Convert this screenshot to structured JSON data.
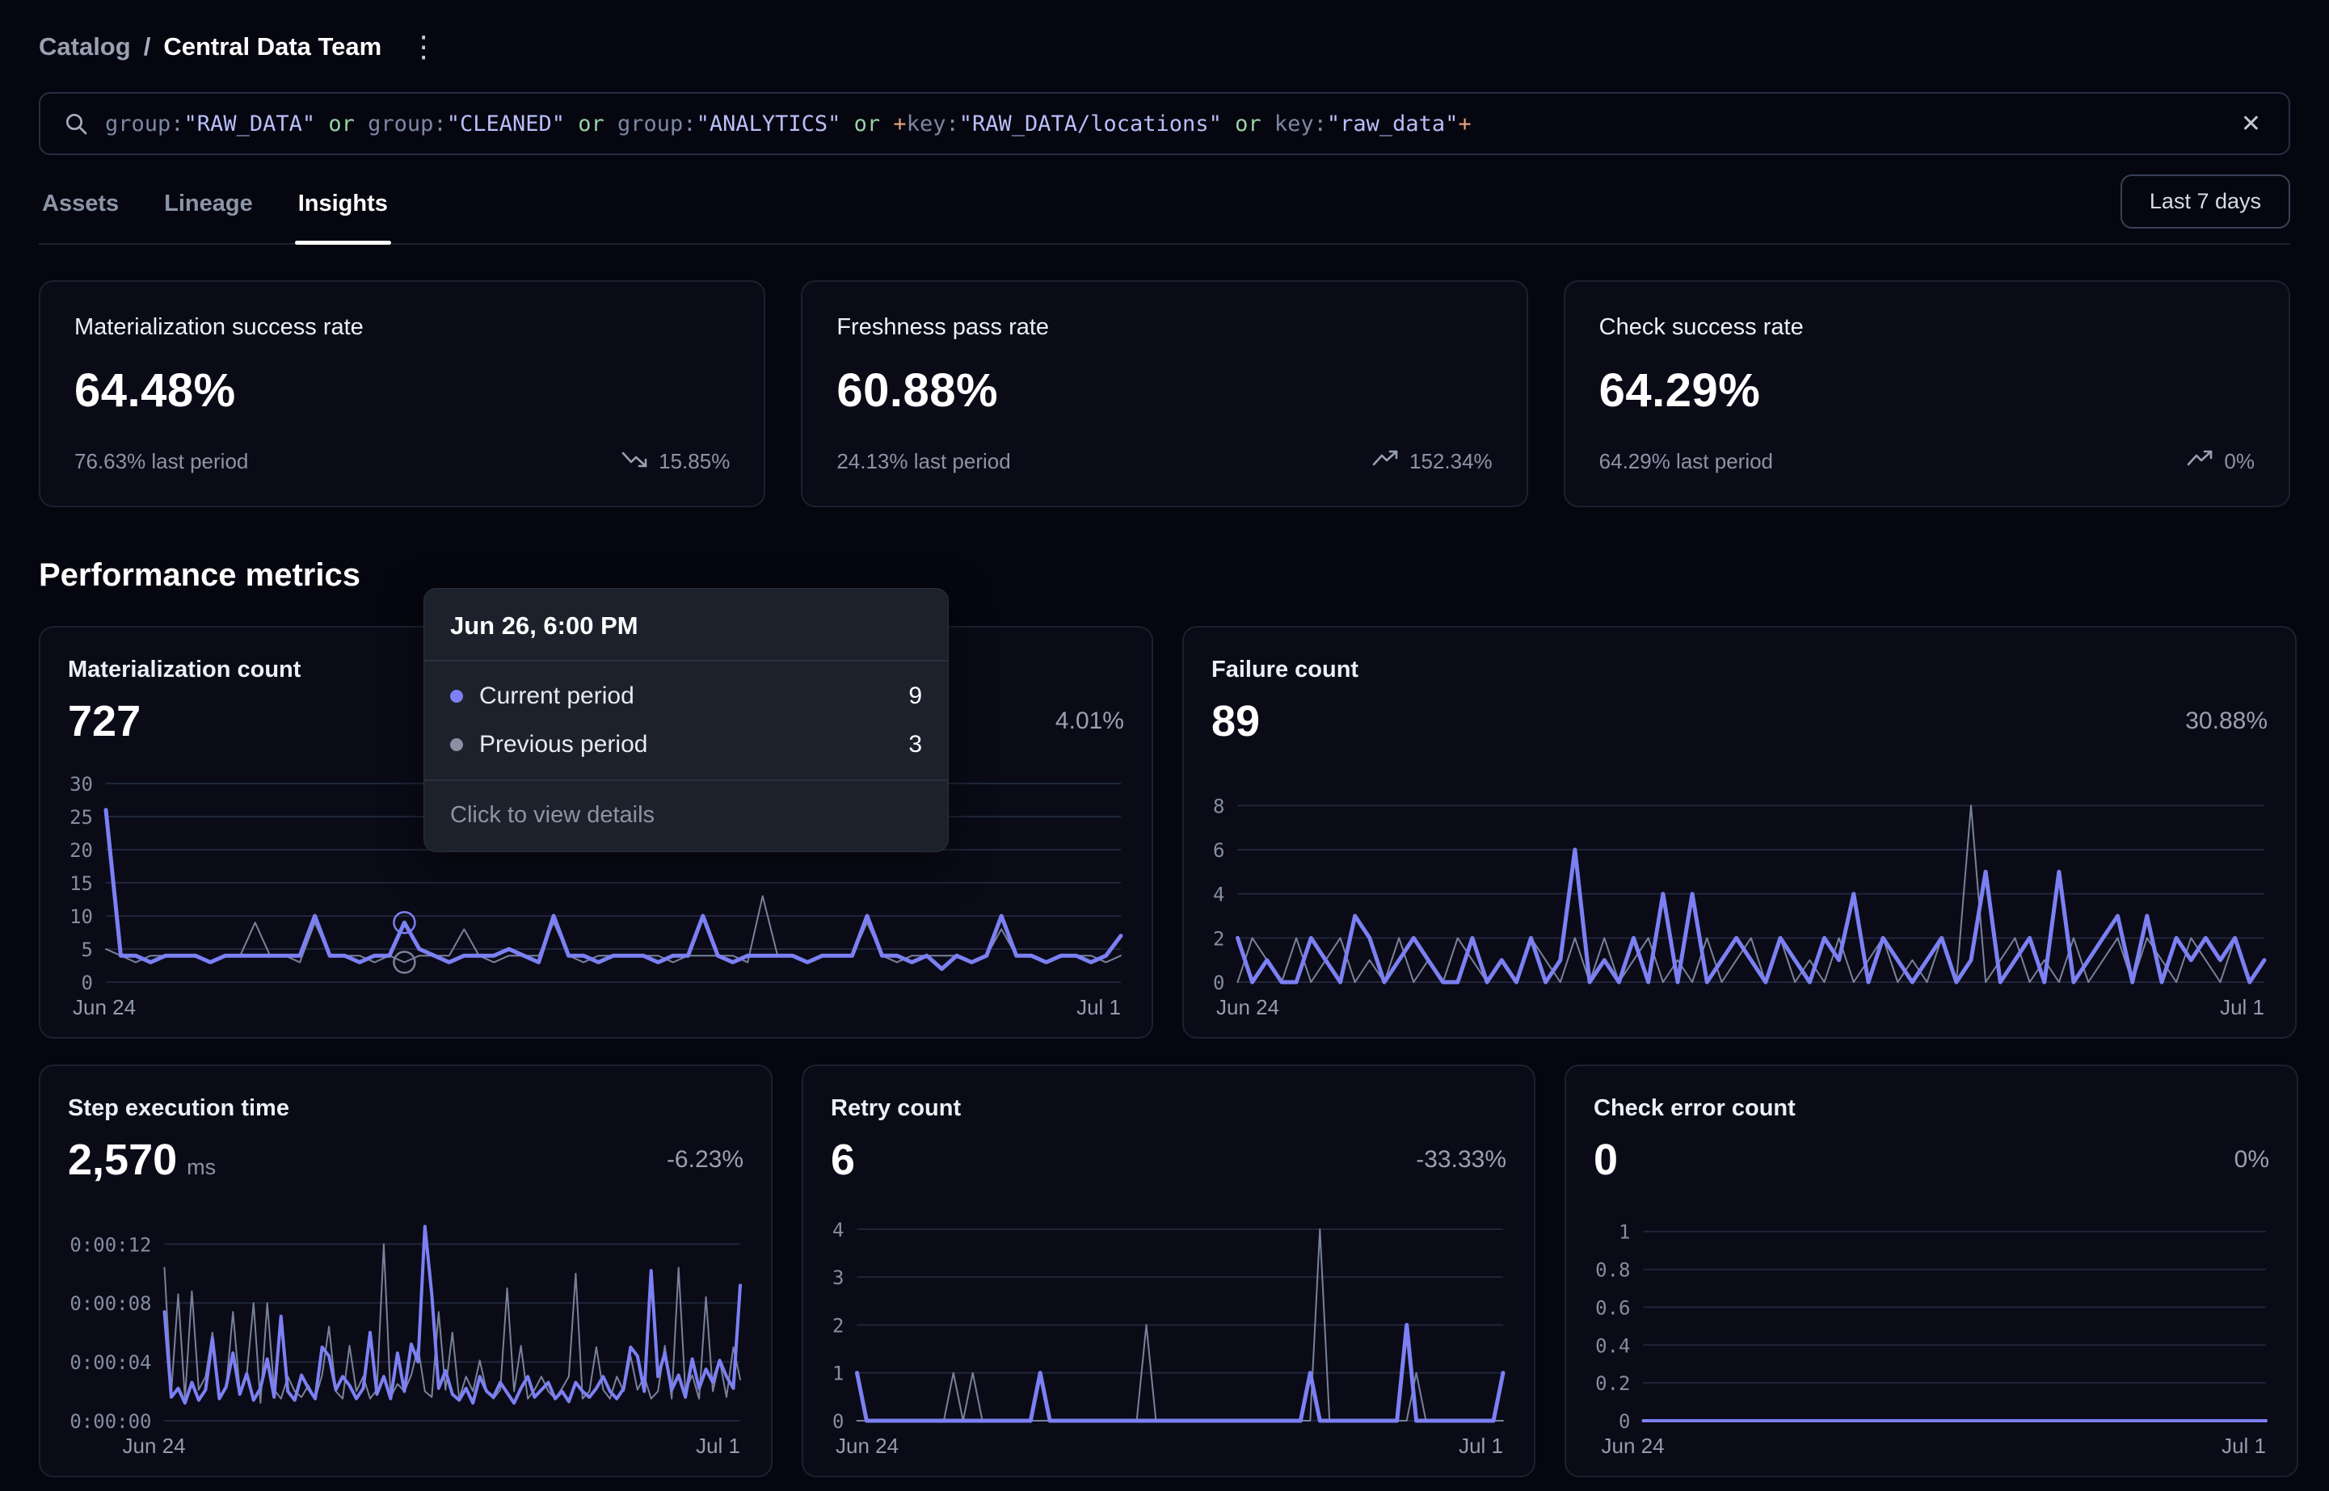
{
  "header": {
    "breadcrumb": {
      "section": "Catalog",
      "separator": "/",
      "current": "Central Data Team"
    },
    "menu_icon": "kebab-menu"
  },
  "search": {
    "tokens": [
      {
        "text": "group:",
        "type": "key"
      },
      {
        "text": "\"RAW_DATA\"",
        "type": "value"
      },
      {
        "text": " or ",
        "type": "op"
      },
      {
        "text": "group:",
        "type": "key"
      },
      {
        "text": "\"CLEANED\"",
        "type": "value"
      },
      {
        "text": " or ",
        "type": "op"
      },
      {
        "text": "group:",
        "type": "key"
      },
      {
        "text": "\"ANALYTICS\"",
        "type": "value"
      },
      {
        "text": " or ",
        "type": "op"
      },
      {
        "text": "+",
        "type": "plus"
      },
      {
        "text": "key:",
        "type": "key"
      },
      {
        "text": "\"RAW_DATA/locations\"",
        "type": "value"
      },
      {
        "text": " or ",
        "type": "op"
      },
      {
        "text": "key:",
        "type": "key"
      },
      {
        "text": "\"raw_data\"",
        "type": "value"
      },
      {
        "text": "+",
        "type": "plus"
      }
    ],
    "clear_icon": "close"
  },
  "tabs": {
    "items": [
      {
        "label": "Assets",
        "active": false
      },
      {
        "label": "Lineage",
        "active": false
      },
      {
        "label": "Insights",
        "active": true
      }
    ],
    "range_button": "Last 7 days"
  },
  "summary_cards": [
    {
      "title": "Materialization success rate",
      "value": "64.48%",
      "last_period": "76.63% last period",
      "change": "15.85%",
      "trend": "down"
    },
    {
      "title": "Freshness pass rate",
      "value": "60.88%",
      "last_period": "24.13% last period",
      "change": "152.34%",
      "trend": "up"
    },
    {
      "title": "Check success rate",
      "value": "64.29%",
      "last_period": "64.29% last period",
      "change": "0%",
      "trend": "up"
    }
  ],
  "performance": {
    "heading": "Performance metrics",
    "charts": [
      {
        "title": "Materialization count",
        "value": "727",
        "unit": "",
        "change": "4.01%",
        "chart_data": {
          "type": "line",
          "x_range": [
            "Jun 24",
            "Jul 1"
          ],
          "y_ticks": [
            0,
            5,
            10,
            15,
            20,
            25,
            30
          ],
          "y_tick_labels": [
            "0",
            "5",
            "10",
            "15",
            "20",
            "25",
            "30"
          ],
          "scale_max": 30,
          "series": [
            {
              "name": "Current period",
              "color": "#7c80f3",
              "width": 5,
              "values": [
                26,
                4,
                4,
                3,
                4,
                4,
                4,
                3,
                4,
                4,
                4,
                4,
                4,
                4,
                10,
                4,
                4,
                3,
                4,
                4,
                9,
                5,
                4,
                3,
                4,
                4,
                4,
                5,
                4,
                3,
                10,
                4,
                4,
                3,
                4,
                4,
                4,
                3,
                4,
                4,
                10,
                4,
                3,
                4,
                4,
                4,
                4,
                3,
                4,
                4,
                4,
                10,
                4,
                4,
                3,
                4,
                2,
                4,
                3,
                4,
                10,
                4,
                4,
                3,
                4,
                4,
                3,
                4,
                7
              ]
            },
            {
              "name": "Previous period",
              "color": "#79819a",
              "width": 2,
              "values": [
                5,
                4,
                3,
                4,
                4,
                4,
                4,
                3,
                4,
                4,
                9,
                4,
                4,
                3,
                9,
                4,
                4,
                4,
                3,
                4,
                3,
                4,
                4,
                4,
                8,
                4,
                3,
                4,
                4,
                4,
                9,
                4,
                3,
                4,
                4,
                4,
                4,
                4,
                3,
                4,
                4,
                4,
                4,
                3,
                13,
                4,
                4,
                3,
                4,
                4,
                4,
                9,
                4,
                3,
                4,
                4,
                4,
                4,
                3,
                4,
                8,
                4,
                4,
                3,
                4,
                4,
                4,
                3,
                4
              ]
            }
          ],
          "hover": {
            "index": 20,
            "rings": [
              0,
              1
            ]
          }
        }
      },
      {
        "title": "Failure count",
        "value": "89",
        "unit": "",
        "change": "30.88%",
        "chart_data": {
          "type": "line",
          "x_range": [
            "Jun 24",
            "Jul 1"
          ],
          "y_ticks": [
            0,
            2,
            4,
            6,
            8
          ],
          "y_tick_labels": [
            "0",
            "2",
            "4",
            "6",
            "8"
          ],
          "scale_max": 9,
          "series": [
            {
              "name": "Current period",
              "color": "#7c80f3",
              "width": 5,
              "values": [
                2,
                0,
                1,
                0,
                0,
                2,
                1,
                0,
                3,
                2,
                0,
                1,
                2,
                1,
                0,
                0,
                2,
                0,
                1,
                0,
                2,
                0,
                1,
                6,
                0,
                1,
                0,
                2,
                0,
                4,
                0,
                4,
                0,
                1,
                2,
                1,
                0,
                2,
                1,
                0,
                2,
                1,
                4,
                0,
                2,
                1,
                0,
                1,
                2,
                0,
                1,
                5,
                0,
                1,
                2,
                0,
                5,
                0,
                1,
                2,
                3,
                0,
                3,
                0,
                2,
                1,
                2,
                1,
                2,
                0,
                1
              ]
            },
            {
              "name": "Previous period",
              "color": "#79819a",
              "width": 2,
              "values": [
                0,
                2,
                1,
                0,
                2,
                0,
                1,
                2,
                0,
                1,
                0,
                2,
                0,
                1,
                0,
                2,
                1,
                0,
                1,
                0,
                2,
                1,
                0,
                2,
                0,
                2,
                0,
                1,
                2,
                0,
                1,
                0,
                2,
                0,
                1,
                2,
                0,
                2,
                0,
                1,
                0,
                2,
                0,
                1,
                2,
                0,
                1,
                0,
                2,
                0,
                8,
                0,
                1,
                2,
                0,
                1,
                0,
                2,
                0,
                1,
                2,
                0,
                2,
                1,
                0,
                2,
                1,
                0,
                2,
                0,
                1
              ]
            }
          ]
        }
      },
      {
        "title": "Step execution time",
        "value": "2,570",
        "unit": "ms",
        "change": "-6.23%",
        "chart_data": {
          "type": "line",
          "x_range": [
            "Jun 24",
            "Jul 1"
          ],
          "y_ticks": [
            0,
            4,
            8,
            12
          ],
          "y_tick_labels": [
            "0:00:00",
            "0:00:04",
            "0:00:08",
            "0:00:12"
          ],
          "scale_max": 13.5,
          "series": [
            {
              "name": "Current period",
              "color": "#7c80f3",
              "width": 4,
              "values": [
                7.4,
                1.6,
                2.2,
                1.2,
                2.6,
                1.4,
                2.1,
                5.6,
                1.5,
                2.3,
                4.6,
                1.8,
                3.2,
                1.4,
                2.2,
                4.2,
                1.6,
                7.1,
                2.0,
                1.4,
                3.1,
                2.2,
                1.5,
                5.0,
                4.4,
                2.1,
                3.0,
                2.4,
                1.5,
                2.2,
                6.0,
                1.8,
                3.0,
                1.5,
                4.6,
                2.0,
                5.2,
                4.0,
                13.2,
                8.6,
                2.2,
                3.4,
                1.8,
                1.4,
                2.2,
                1.2,
                3.0,
                2.0,
                1.6,
                2.6,
                1.9,
                1.2,
                2.2,
                3.0,
                1.6,
                2.1,
                2.6,
                1.5,
                2.0,
                1.3,
                2.6,
                2.0,
                1.6,
                2.2,
                3.0,
                2.0,
                1.5,
                2.2,
                5.0,
                4.4,
                2.0,
                10.2,
                3.0,
                4.6,
                2.1,
                3.1,
                1.6,
                4.2,
                2.2,
                3.5,
                2.6,
                4.1,
                3.0,
                2.2,
                9.2
              ]
            },
            {
              "name": "Previous period",
              "color": "#79819a",
              "width": 2,
              "values": [
                10.4,
                2.0,
                8.6,
                1.5,
                8.8,
                2.1,
                3.0,
                6.0,
                1.5,
                2.2,
                7.4,
                2.0,
                3.1,
                8.0,
                1.2,
                8.0,
                2.1,
                1.5,
                3.0,
                2.0,
                1.6,
                2.4,
                1.5,
                3.1,
                6.4,
                2.0,
                1.5,
                5.1,
                2.0,
                3.0,
                1.5,
                2.1,
                12.0,
                1.6,
                2.5,
                2.0,
                3.1,
                5.0,
                2.0,
                1.6,
                7.4,
                2.1,
                6.0,
                1.5,
                3.0,
                2.0,
                4.1,
                2.0,
                1.5,
                2.1,
                9.0,
                2.0,
                5.1,
                1.5,
                2.1,
                3.0,
                2.0,
                1.5,
                2.2,
                3.0,
                10.0,
                1.5,
                2.0,
                5.0,
                2.1,
                1.5,
                3.0,
                2.0,
                4.4,
                2.1,
                3.0,
                1.5,
                2.0,
                5.1,
                1.5,
                10.4,
                2.0,
                3.1,
                1.5,
                8.4,
                2.0,
                4.1,
                1.6,
                5.0,
                2.8
              ]
            }
          ]
        }
      },
      {
        "title": "Retry count",
        "value": "6",
        "unit": "",
        "change": "-33.33%",
        "chart_data": {
          "type": "line",
          "x_range": [
            "Jun 24",
            "Jul 1"
          ],
          "y_ticks": [
            0,
            1,
            2,
            3,
            4
          ],
          "y_tick_labels": [
            "0",
            "1",
            "2",
            "3",
            "4"
          ],
          "scale_max": 4.15,
          "series": [
            {
              "name": "Current period",
              "color": "#7c80f3",
              "width": 5,
              "values": [
                1,
                0,
                0,
                0,
                0,
                0,
                0,
                0,
                0,
                0,
                0,
                0,
                0,
                0,
                0,
                0,
                0,
                0,
                0,
                1,
                0,
                0,
                0,
                0,
                0,
                0,
                0,
                0,
                0,
                0,
                0,
                0,
                0,
                0,
                0,
                0,
                0,
                0,
                0,
                0,
                0,
                0,
                0,
                0,
                0,
                0,
                0,
                1,
                0,
                0,
                0,
                0,
                0,
                0,
                0,
                0,
                0,
                2,
                0,
                0,
                0,
                0,
                0,
                0,
                0,
                0,
                0,
                1
              ]
            },
            {
              "name": "Previous period",
              "color": "#79819a",
              "width": 2,
              "values": [
                0,
                0,
                0,
                0,
                0,
                0,
                0,
                0,
                0,
                0,
                1,
                0,
                1,
                0,
                0,
                0,
                0,
                0,
                0,
                0,
                0,
                0,
                0,
                0,
                0,
                0,
                0,
                0,
                0,
                0,
                2,
                0,
                0,
                0,
                0,
                0,
                0,
                0,
                0,
                0,
                0,
                0,
                0,
                0,
                0,
                0,
                0,
                0,
                4,
                0,
                0,
                0,
                0,
                0,
                0,
                0,
                0,
                0,
                1,
                0,
                0,
                0,
                0,
                0,
                0,
                0,
                0,
                0
              ]
            }
          ]
        }
      },
      {
        "title": "Check error count",
        "value": "0",
        "unit": "",
        "change": "0%",
        "chart_data": {
          "type": "line",
          "x_range": [
            "Jun 24",
            "Jul 1"
          ],
          "y_ticks": [
            0,
            0.2,
            0.4,
            0.6,
            0.8,
            1
          ],
          "y_tick_labels": [
            "0",
            "0.2",
            "0.4",
            "0.6",
            "0.8",
            "1"
          ],
          "scale_max": 1.05,
          "series": [
            {
              "name": "Current period",
              "color": "#7c80f3",
              "width": 4,
              "values": [
                0,
                0,
                0,
                0,
                0,
                0,
                0,
                0,
                0,
                0,
                0,
                0,
                0,
                0,
                0
              ]
            },
            {
              "name": "Previous period",
              "color": "#79819a",
              "width": 2,
              "values": [
                0,
                0,
                0,
                0,
                0,
                0,
                0,
                0,
                0,
                0,
                0,
                0,
                0,
                0,
                0
              ]
            }
          ]
        }
      }
    ]
  },
  "tooltip": {
    "title": "Jun 26, 6:00 PM",
    "rows": [
      {
        "label": "Current period",
        "value": "9",
        "color": "#7c80f3"
      },
      {
        "label": "Previous period",
        "value": "3",
        "color": "#8a90a2"
      }
    ],
    "footer": "Click to view details"
  },
  "colors": {
    "background": "#05060f",
    "card_background": "#0a0b17",
    "card_border": "#1c2030",
    "accent_purple": "#7c80f3",
    "previous_series_gray": "#79819a",
    "muted_text": "#9aa0b3"
  }
}
